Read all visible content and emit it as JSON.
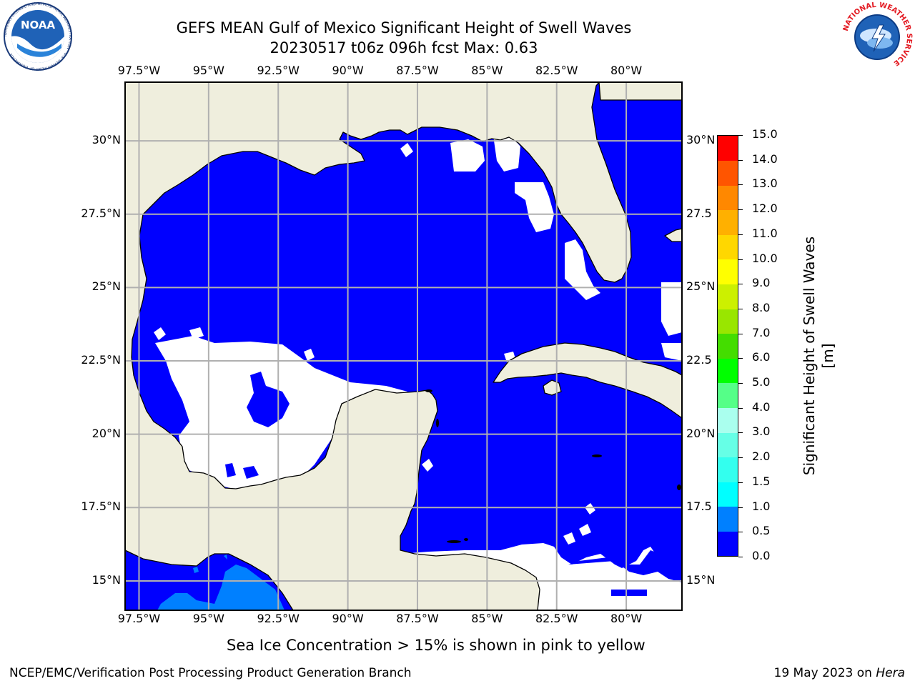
{
  "title": {
    "line1": "GEFS MEAN Gulf of Mexico Significant Height of Swell Waves",
    "line2": "20230517 t06z 096h fcst   Max: 0.63"
  },
  "map": {
    "projection": "latlon",
    "lon_range": [
      -98.0,
      -78.0
    ],
    "lat_range": [
      14.0,
      32.0
    ],
    "lon_ticks": [
      "97.5°W",
      "95°W",
      "92.5°W",
      "90°W",
      "87.5°W",
      "85°W",
      "82.5°W",
      "80°W"
    ],
    "lat_ticks_left": [
      "30°N",
      "27.5°N",
      "25°N",
      "22.5°N",
      "20°N",
      "17.5°N",
      "15°N"
    ],
    "lat_ticks_right": [
      "30°N",
      "27.5",
      "25°N",
      "22.5",
      "20°N",
      "17.5",
      "15°N"
    ],
    "grid": true,
    "colors": {
      "land": "#efeedd",
      "ocean_low": "#0000ff",
      "ocean_mid": "#0080ff",
      "calm": "#ffffff",
      "grid": "#b0b0b0"
    }
  },
  "colorbar": {
    "label": "Significant Height of Swell Waves [m]",
    "ticks": [
      "0.0",
      "0.5",
      "1.0",
      "1.5",
      "2.0",
      "3.0",
      "4.0",
      "5.0",
      "6.0",
      "7.0",
      "8.0",
      "9.0",
      "10.0",
      "11.0",
      "12.0",
      "13.0",
      "14.0",
      "15.0"
    ],
    "colors": [
      "#0000ff",
      "#0080ff",
      "#00ffff",
      "#33ffee",
      "#66ffe6",
      "#aaffee",
      "#55ff88",
      "#00ff00",
      "#44dd00",
      "#99e600",
      "#ccf000",
      "#ffff00",
      "#ffd700",
      "#ffb000",
      "#ff8800",
      "#ff5500",
      "#ff0000"
    ]
  },
  "note": "Sea Ice Concentration > 15% is shown in pink to yellow",
  "footer": {
    "left": "NCEP/EMC/Verification Post Processing Product Generation Branch",
    "right_date": "19 May 2023 on ",
    "right_host": "Hera"
  },
  "logos": {
    "noaa_text": "NOAA",
    "noaa_ring": "NATIONAL OCEANIC AND ATMOSPHERIC ADMINISTRATION · U.S. DEPARTMENT OF COMMERCE",
    "nws_ring": "NATIONAL WEATHER SERVICE",
    "noaa_icon": "noaa-logo-icon",
    "nws_icon": "nws-logo-icon"
  }
}
